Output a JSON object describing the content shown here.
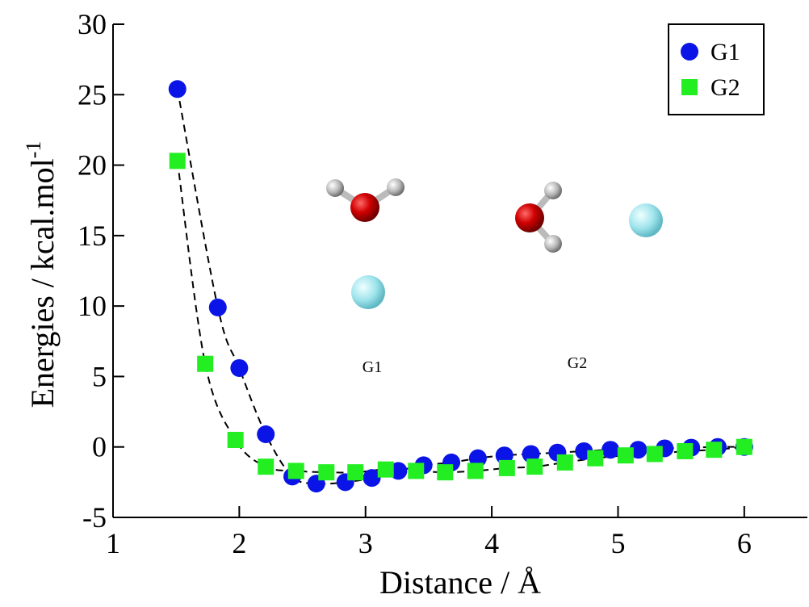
{
  "chart_data": {
    "type": "scatter",
    "xlabel": "Distance / Å",
    "ylabel": "Energies / kcal.mol",
    "ylabel_superscript": "-1",
    "xlim": [
      1,
      6.5
    ],
    "ylim": [
      -5,
      30
    ],
    "xticks": [
      1,
      2,
      3,
      4,
      5,
      6
    ],
    "yticks": [
      -5,
      0,
      5,
      10,
      15,
      20,
      25,
      30
    ],
    "legend": "upper right",
    "annotations": [
      "G1",
      "G2"
    ],
    "series": [
      {
        "name": "G1",
        "color": "#0a14e6",
        "marker": "circle",
        "x": [
          1.51,
          1.83,
          2.0,
          2.21,
          2.42,
          2.61,
          2.84,
          3.05,
          3.26,
          3.46,
          3.68,
          3.89,
          4.1,
          4.31,
          4.52,
          4.73,
          4.94,
          5.16,
          5.37,
          5.58,
          5.79,
          6.0
        ],
        "values": [
          25.4,
          9.9,
          5.6,
          0.9,
          -2.1,
          -2.6,
          -2.5,
          -2.2,
          -1.7,
          -1.3,
          -1.1,
          -0.8,
          -0.6,
          -0.5,
          -0.4,
          -0.3,
          -0.2,
          -0.2,
          -0.1,
          -0.05,
          0,
          0
        ]
      },
      {
        "name": "G2",
        "color": "#22ee22",
        "marker": "square",
        "x": [
          1.51,
          1.73,
          1.97,
          2.21,
          2.45,
          2.69,
          2.92,
          3.16,
          3.4,
          3.63,
          3.87,
          4.12,
          4.34,
          4.58,
          4.82,
          5.06,
          5.29,
          5.53,
          5.76,
          6.0
        ],
        "values": [
          20.3,
          5.9,
          0.5,
          -1.4,
          -1.7,
          -1.8,
          -1.8,
          -1.6,
          -1.7,
          -1.8,
          -1.7,
          -1.5,
          -1.4,
          -1.1,
          -0.8,
          -0.6,
          -0.5,
          -0.3,
          -0.2,
          0
        ]
      }
    ]
  }
}
